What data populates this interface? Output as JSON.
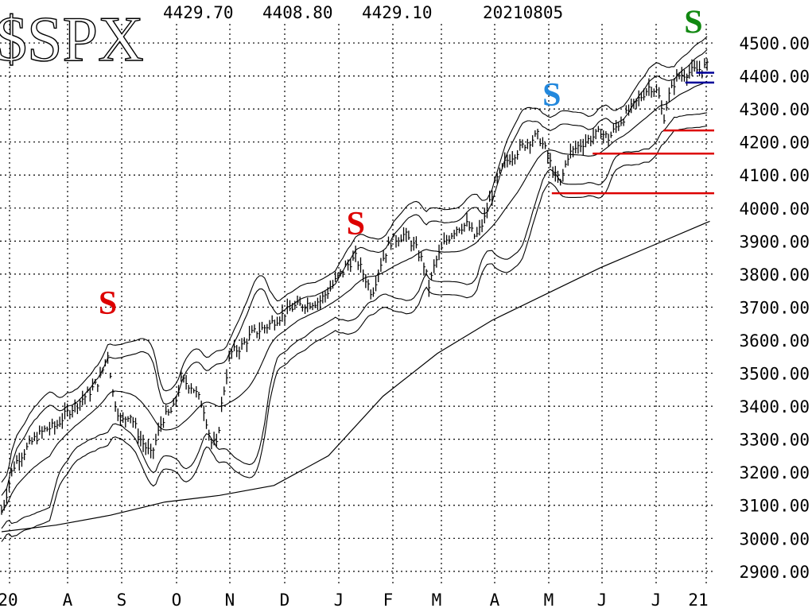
{
  "header": {
    "symbol": "$SPX",
    "high": "4429.70",
    "low": "4408.80",
    "close": "4429.10",
    "date": "20210805"
  },
  "chart_data": {
    "type": "line",
    "title": "$SPX",
    "x_tick_labels": [
      "20",
      "A",
      "S",
      "O",
      "N",
      "D",
      "J",
      "F",
      "M",
      "A",
      "M",
      "J",
      "J",
      "21"
    ],
    "y_tick_labels": [
      "4500.00",
      "4400.00",
      "4300.00",
      "4200.00",
      "4100.00",
      "4000.00",
      "3900.00",
      "3800.00",
      "3700.00",
      "3600.00",
      "3500.00",
      "3400.00",
      "3300.00",
      "3200.00",
      "3100.00",
      "3000.00",
      "2900.00"
    ],
    "ylim": [
      2870,
      4545
    ],
    "x_range_months": [
      "2020-07",
      "2021-08"
    ],
    "grid": true,
    "price_close_approx": [
      {
        "m": 0.0,
        "v": 3080
      },
      {
        "m": 0.1,
        "v": 3140
      },
      {
        "m": 0.2,
        "v": 3210
      },
      {
        "m": 0.3,
        "v": 3240
      },
      {
        "m": 0.45,
        "v": 3270
      },
      {
        "m": 0.6,
        "v": 3300
      },
      {
        "m": 0.8,
        "v": 3330
      },
      {
        "m": 1.0,
        "v": 3340
      },
      {
        "m": 1.2,
        "v": 3380
      },
      {
        "m": 1.4,
        "v": 3410
      },
      {
        "m": 1.6,
        "v": 3440
      },
      {
        "m": 1.8,
        "v": 3480
      },
      {
        "m": 1.95,
        "v": 3560
      },
      {
        "m": 2.05,
        "v": 3430
      },
      {
        "m": 2.2,
        "v": 3350
      },
      {
        "m": 2.35,
        "v": 3380
      },
      {
        "m": 2.55,
        "v": 3300
      },
      {
        "m": 2.75,
        "v": 3250
      },
      {
        "m": 2.95,
        "v": 3360
      },
      {
        "m": 3.15,
        "v": 3390
      },
      {
        "m": 3.3,
        "v": 3480
      },
      {
        "m": 3.5,
        "v": 3460
      },
      {
        "m": 3.7,
        "v": 3400
      },
      {
        "m": 3.85,
        "v": 3290
      },
      {
        "m": 3.95,
        "v": 3280
      },
      {
        "m": 4.05,
        "v": 3420
      },
      {
        "m": 4.2,
        "v": 3560
      },
      {
        "m": 4.4,
        "v": 3580
      },
      {
        "m": 4.6,
        "v": 3620
      },
      {
        "m": 4.85,
        "v": 3640
      },
      {
        "m": 5.1,
        "v": 3670
      },
      {
        "m": 5.35,
        "v": 3700
      },
      {
        "m": 5.6,
        "v": 3710
      },
      {
        "m": 5.85,
        "v": 3720
      },
      {
        "m": 6.05,
        "v": 3760
      },
      {
        "m": 6.3,
        "v": 3820
      },
      {
        "m": 6.5,
        "v": 3850
      },
      {
        "m": 6.7,
        "v": 3780
      },
      {
        "m": 6.8,
        "v": 3740
      },
      {
        "m": 6.95,
        "v": 3830
      },
      {
        "m": 7.15,
        "v": 3900
      },
      {
        "m": 7.4,
        "v": 3920
      },
      {
        "m": 7.6,
        "v": 3880
      },
      {
        "m": 7.75,
        "v": 3830
      },
      {
        "m": 7.85,
        "v": 3760
      },
      {
        "m": 7.95,
        "v": 3830
      },
      {
        "m": 8.15,
        "v": 3900
      },
      {
        "m": 8.35,
        "v": 3940
      },
      {
        "m": 8.55,
        "v": 3950
      },
      {
        "m": 8.7,
        "v": 3910
      },
      {
        "m": 8.85,
        "v": 3960
      },
      {
        "m": 9.05,
        "v": 4070
      },
      {
        "m": 9.25,
        "v": 4140
      },
      {
        "m": 9.45,
        "v": 4170
      },
      {
        "m": 9.65,
        "v": 4200
      },
      {
        "m": 9.85,
        "v": 4220
      },
      {
        "m": 10.0,
        "v": 4170
      },
      {
        "m": 10.15,
        "v": 4100
      },
      {
        "m": 10.25,
        "v": 4070
      },
      {
        "m": 10.4,
        "v": 4160
      },
      {
        "m": 10.6,
        "v": 4190
      },
      {
        "m": 10.8,
        "v": 4210
      },
      {
        "m": 11.0,
        "v": 4230
      },
      {
        "m": 11.15,
        "v": 4210
      },
      {
        "m": 11.3,
        "v": 4250
      },
      {
        "m": 11.5,
        "v": 4290
      },
      {
        "m": 11.7,
        "v": 4330
      },
      {
        "m": 11.9,
        "v": 4370
      },
      {
        "m": 12.05,
        "v": 4350
      },
      {
        "m": 12.15,
        "v": 4270
      },
      {
        "m": 12.25,
        "v": 4340
      },
      {
        "m": 12.4,
        "v": 4400
      },
      {
        "m": 12.6,
        "v": 4410
      },
      {
        "m": 12.8,
        "v": 4420
      },
      {
        "m": 12.95,
        "v": 4429.1
      }
    ],
    "ma200_approx": [
      {
        "m": 0.0,
        "v": 3020
      },
      {
        "m": 1.0,
        "v": 3040
      },
      {
        "m": 2.0,
        "v": 3070
      },
      {
        "m": 3.0,
        "v": 3110
      },
      {
        "m": 4.0,
        "v": 3130
      },
      {
        "m": 5.0,
        "v": 3160
      },
      {
        "m": 6.0,
        "v": 3250
      },
      {
        "m": 7.0,
        "v": 3430
      },
      {
        "m": 8.0,
        "v": 3560
      },
      {
        "m": 9.0,
        "v": 3660
      },
      {
        "m": 10.0,
        "v": 3740
      },
      {
        "m": 11.0,
        "v": 3820
      },
      {
        "m": 12.0,
        "v": 3890
      },
      {
        "m": 13.0,
        "v": 3960
      }
    ],
    "sell_signals": [
      {
        "label": "S",
        "color": "#dd0000",
        "m": 1.95,
        "v": 3680
      },
      {
        "label": "S",
        "color": "#dd0000",
        "m": 6.5,
        "v": 3920
      },
      {
        "label": "S",
        "color": "#2288dd",
        "m": 10.1,
        "v": 4310
      },
      {
        "label": "S",
        "color": "#118811",
        "m": 12.7,
        "v": 4530
      }
    ],
    "horizontal_levels": [
      {
        "value": 4380,
        "color": "#000099",
        "from_m": 12.55
      },
      {
        "value": 4410,
        "color": "#000099",
        "from_m": 12.75
      },
      {
        "value": 4235,
        "color": "#dd0000",
        "from_m": 12.15
      },
      {
        "value": 4165,
        "color": "#dd0000",
        "from_m": 10.85
      },
      {
        "value": 4045,
        "color": "#dd0000",
        "from_m": 10.1
      }
    ],
    "colors": {
      "price": "#000000",
      "bands": "#000000",
      "grid": "#000000",
      "support": "#dd0000",
      "resistance": "#000099"
    }
  }
}
